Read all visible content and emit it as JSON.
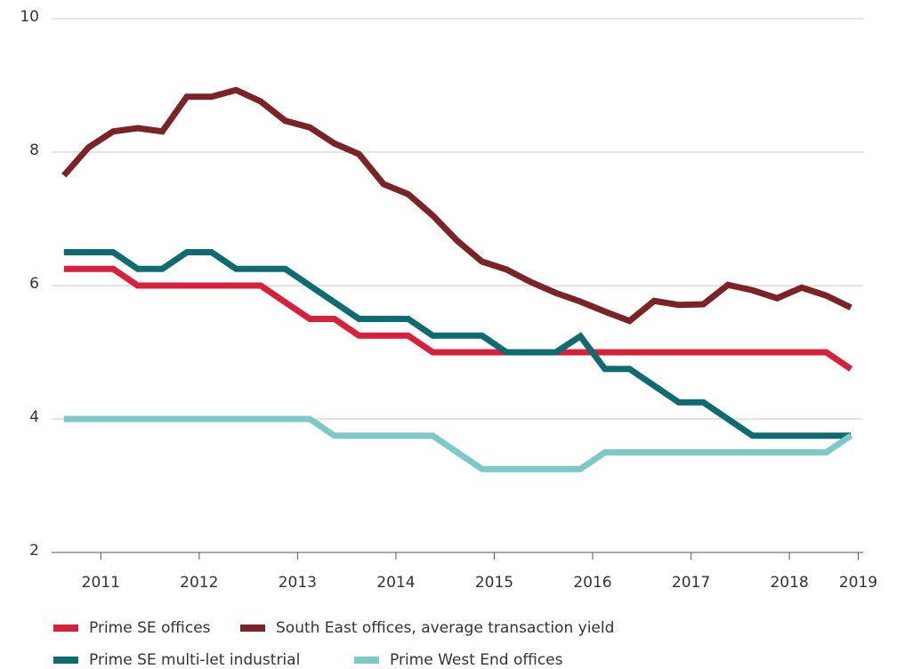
{
  "chart_data": {
    "type": "line",
    "x": [
      2011.125,
      2011.375,
      2011.625,
      2011.875,
      2012.125,
      2012.375,
      2012.625,
      2012.875,
      2013.125,
      2013.375,
      2013.625,
      2013.875,
      2014.125,
      2014.375,
      2014.625,
      2014.875,
      2015.125,
      2015.375,
      2015.625,
      2015.875,
      2016.125,
      2016.375,
      2016.625,
      2016.875,
      2017.125,
      2017.375,
      2017.625,
      2017.875,
      2018.125,
      2018.375,
      2018.625,
      2018.875,
      2019.125
    ],
    "series": [
      {
        "name": "Prime SE offices",
        "color": "#d7213a",
        "values": [
          6.25,
          6.25,
          6.25,
          6,
          6,
          6,
          6,
          6,
          6,
          5.75,
          5.5,
          5.5,
          5.25,
          5.25,
          5.25,
          5,
          5,
          5,
          5,
          5,
          5,
          5,
          5,
          5,
          5,
          5,
          5,
          5,
          5,
          5,
          5,
          5,
          4.75
        ]
      },
      {
        "name": "South East offices, average transaction yield",
        "color": "#7b2326",
        "values": [
          7.65,
          8.07,
          8.31,
          8.36,
          8.31,
          8.83,
          8.83,
          8.93,
          8.76,
          8.47,
          8.37,
          8.13,
          7.97,
          7.52,
          7.37,
          7.05,
          6.67,
          6.36,
          6.24,
          6.05,
          5.89,
          5.76,
          5.61,
          5.47,
          5.77,
          5.71,
          5.72,
          6.01,
          5.93,
          5.81,
          5.97,
          5.85,
          5.67
        ]
      },
      {
        "name": "Prime SE multi-let industrial",
        "color": "#0e6b6f",
        "values": [
          6.5,
          6.5,
          6.5,
          6.25,
          6.25,
          6.5,
          6.5,
          6.25,
          6.25,
          6.25,
          6,
          5.75,
          5.5,
          5.5,
          5.5,
          5.25,
          5.25,
          5.25,
          5,
          5,
          5,
          5.24,
          4.75,
          4.75,
          4.5,
          4.25,
          4.25,
          4,
          3.75,
          3.75,
          3.75,
          3.75,
          3.75
        ]
      },
      {
        "name": "Prime West End offices",
        "color": "#7cc9c8",
        "values": [
          4,
          4,
          4,
          4,
          4,
          4,
          4,
          4,
          4,
          4,
          4,
          3.75,
          3.75,
          3.75,
          3.75,
          3.75,
          3.5,
          3.25,
          3.25,
          3.25,
          3.25,
          3.25,
          3.5,
          3.5,
          3.5,
          3.5,
          3.5,
          3.5,
          3.5,
          3.5,
          3.5,
          3.5,
          3.75
        ]
      }
    ],
    "xlim": [
      2011,
      2019.25
    ],
    "xticks": [
      {
        "value": 2011.5,
        "label": "2011"
      },
      {
        "value": 2012.5,
        "label": "2012"
      },
      {
        "value": 2013.5,
        "label": "2013"
      },
      {
        "value": 2014.5,
        "label": "2014"
      },
      {
        "value": 2015.5,
        "label": "2015"
      },
      {
        "value": 2016.5,
        "label": "2016"
      },
      {
        "value": 2017.5,
        "label": "2017"
      },
      {
        "value": 2018.5,
        "label": "2018"
      },
      {
        "value": 2019.2,
        "label": "2019"
      }
    ],
    "ylim": [
      2,
      10
    ],
    "yticks": [
      2,
      4,
      6,
      8,
      10
    ],
    "grid": true
  }
}
